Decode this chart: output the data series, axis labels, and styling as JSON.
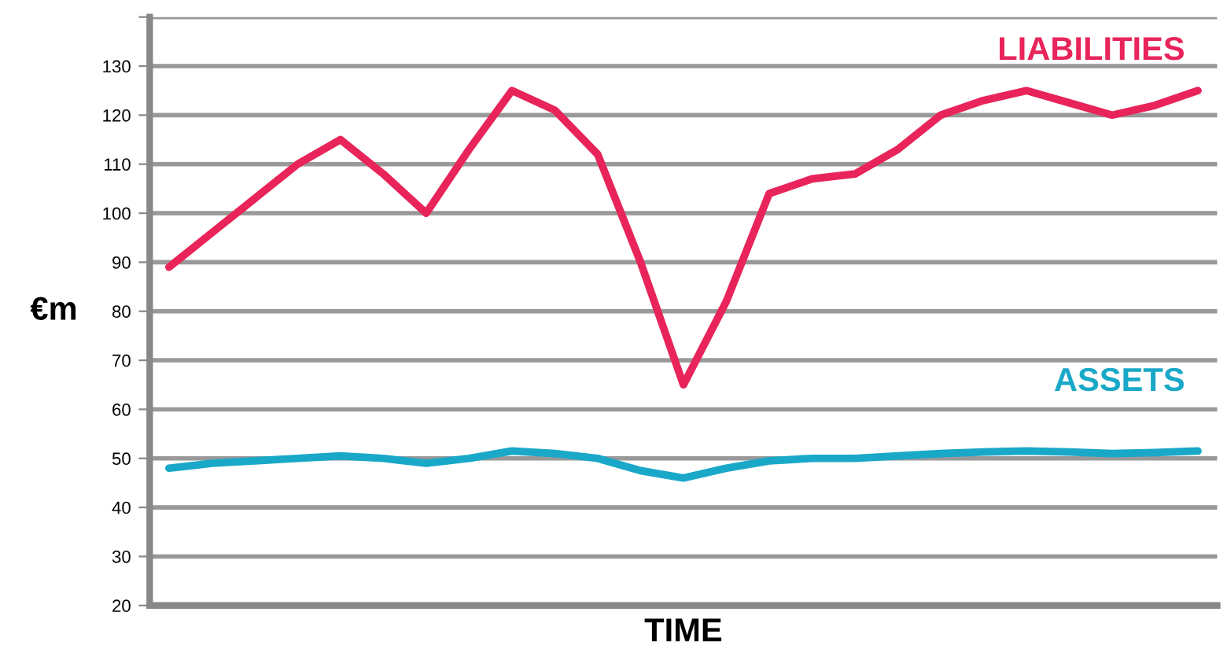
{
  "chart_data": {
    "type": "line",
    "xlabel": "TIME",
    "ylabel": "€m",
    "categories": [
      null,
      null,
      null,
      null,
      null,
      null,
      null,
      null,
      null,
      null,
      null,
      null,
      null,
      null,
      null,
      null,
      null,
      null,
      null,
      null,
      null,
      null,
      null,
      null,
      null
    ],
    "series": [
      {
        "name": "LIABILITIES",
        "color": "#e8245a",
        "values": [
          89,
          96,
          103,
          110,
          115,
          108,
          100,
          113,
          125,
          121,
          112,
          90,
          65,
          82,
          104,
          107,
          108,
          113,
          120,
          123,
          125,
          122.5,
          120,
          122,
          125
        ]
      },
      {
        "name": "ASSETS",
        "color": "#1aa8c8",
        "values": [
          48,
          49,
          49.5,
          50,
          50.5,
          50,
          49,
          50,
          51.5,
          51,
          50,
          47.5,
          46,
          48,
          49.5,
          50,
          50,
          50.5,
          51,
          51.3,
          51.5,
          51.3,
          51,
          51.2,
          51.5
        ]
      }
    ],
    "ylim": [
      20,
      140
    ],
    "yticks": [
      20,
      30,
      40,
      50,
      60,
      70,
      80,
      90,
      100,
      110,
      120,
      130,
      {
        "value": 140,
        "label": null
      }
    ],
    "grid": "y",
    "legend": false,
    "marker": "none",
    "line_style": "solid"
  }
}
